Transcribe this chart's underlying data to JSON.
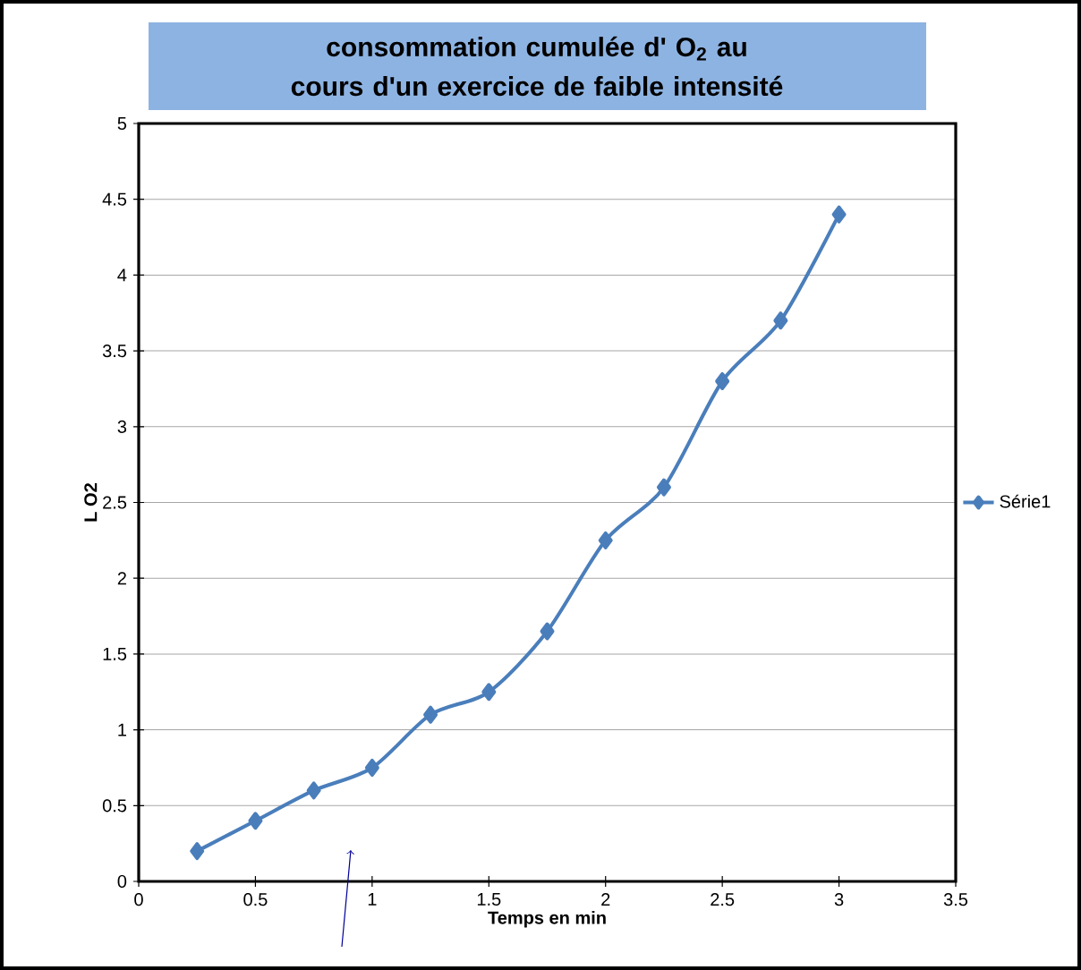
{
  "chart_data": {
    "type": "line",
    "title": "consommation cumulée d' O$_{2}$ au cours d'un exercice de faible intensité",
    "xlabel": "Temps en min",
    "ylabel": "L O2",
    "series": [
      {
        "name": "Série1",
        "color": "#4a7ebb",
        "x": [
          0.25,
          0.5,
          0.75,
          1,
          1.25,
          1.5,
          1.75,
          2,
          2.25,
          2.5,
          2.75,
          3
        ],
        "values": [
          0.2,
          0.4,
          0.6,
          0.75,
          1.1,
          1.25,
          1.65,
          2.25,
          2.6,
          3.3,
          3.7,
          4.4
        ]
      }
    ],
    "xlim": [
      0,
      3.5
    ],
    "xticks": [
      0,
      0.5,
      1,
      1.5,
      2,
      2.5,
      3,
      3.5
    ],
    "ylim": [
      0,
      5
    ],
    "yticks": [
      0,
      0.5,
      1,
      1.5,
      2,
      2.5,
      3,
      3.5,
      4,
      4.5,
      5
    ],
    "grid": "y",
    "legend": "right",
    "marker": "diamond",
    "line_style": "solid"
  }
}
